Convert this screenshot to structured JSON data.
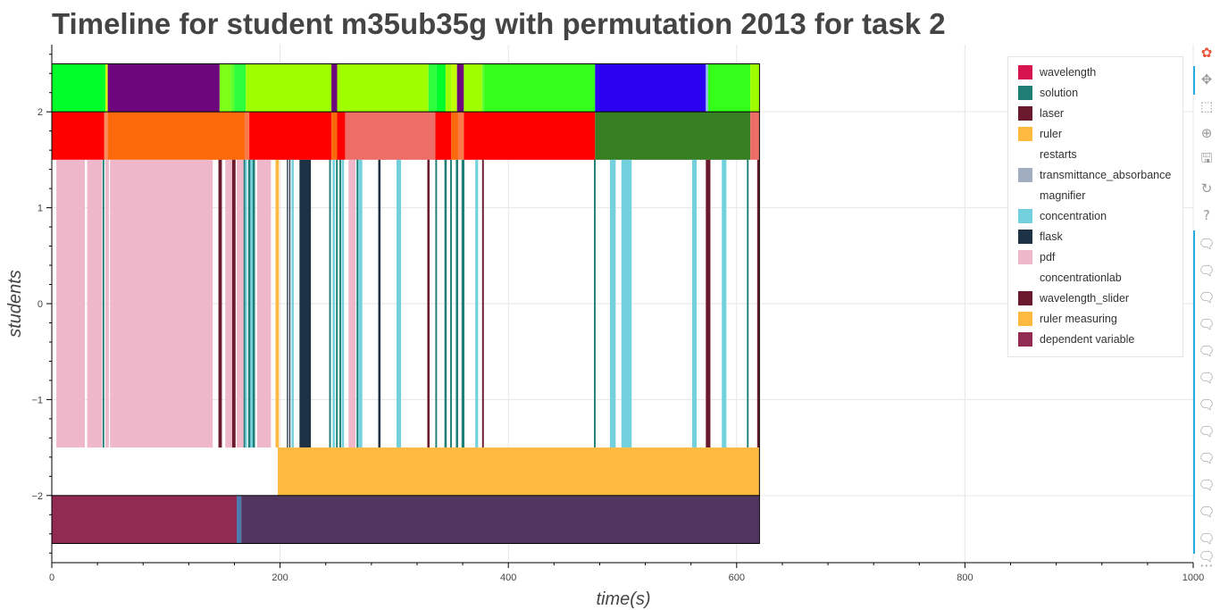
{
  "chart_data": {
    "type": "timeline",
    "title": "Timeline for student m35ub35g with permutation 2013 for task 2",
    "xlabel": "time(s)",
    "ylabel": "students",
    "xlim": [
      0,
      1000
    ],
    "ylim": [
      -2.7,
      2.7
    ],
    "xticks": [
      0,
      200,
      400,
      600,
      800,
      1000
    ],
    "xtick_labels": [
      "0",
      "200",
      "400",
      "600",
      "800",
      "1000"
    ],
    "yticks": [
      -2,
      -1,
      0,
      1,
      2
    ],
    "ytick_labels": [
      "−2",
      "−1",
      "0",
      "1",
      "2"
    ],
    "grid": true,
    "legend_placement": "top-right",
    "legend": [
      {
        "label": "wavelength",
        "color": "#d6124f"
      },
      {
        "label": "solution",
        "color": "#1f7f77"
      },
      {
        "label": "laser",
        "color": "#6b1a2e"
      },
      {
        "label": "ruler",
        "color": "#fdb940"
      },
      {
        "label": "restarts",
        "color": "#ffffff"
      },
      {
        "label": "transmittance_absorbance",
        "color": "#9fadbf"
      },
      {
        "label": "magnifier",
        "color": "#ffffff"
      },
      {
        "label": "concentration",
        "color": "#72d1dc"
      },
      {
        "label": "flask",
        "color": "#1d3245"
      },
      {
        "label": "pdf",
        "color": "#efb8ca"
      },
      {
        "label": "concentrationlab",
        "color": "#ffffff"
      },
      {
        "label": "wavelength_slider",
        "color": "#6b1a2e"
      },
      {
        "label": "ruler measuring",
        "color": "#fdb940"
      },
      {
        "label": "dependent variable",
        "color": "#922b52"
      }
    ],
    "rows": [
      {
        "y0": 2.0,
        "y1": 2.5,
        "segments": [
          {
            "start": 0,
            "end": 47,
            "color": "#00ff2a"
          },
          {
            "start": 47,
            "end": 49,
            "color": "#ccff00"
          },
          {
            "start": 49,
            "end": 147,
            "color": "#6d067d"
          },
          {
            "start": 147,
            "end": 157,
            "color": "#7dff1a"
          },
          {
            "start": 157,
            "end": 160,
            "color": "#5cff30"
          },
          {
            "start": 160,
            "end": 170,
            "color": "#2dff3d"
          },
          {
            "start": 170,
            "end": 245,
            "color": "#9fff00"
          },
          {
            "start": 245,
            "end": 250,
            "color": "#6d067d"
          },
          {
            "start": 250,
            "end": 330,
            "color": "#9fff00"
          },
          {
            "start": 330,
            "end": 337,
            "color": "#2dff3d"
          },
          {
            "start": 337,
            "end": 345,
            "color": "#00ff2a"
          },
          {
            "start": 345,
            "end": 350,
            "color": "#9fff00"
          },
          {
            "start": 350,
            "end": 355,
            "color": "#bfff00"
          },
          {
            "start": 355,
            "end": 361,
            "color": "#6d067d"
          },
          {
            "start": 361,
            "end": 377,
            "color": "#9fff00"
          },
          {
            "start": 377,
            "end": 379,
            "color": "#5cff30"
          },
          {
            "start": 379,
            "end": 476,
            "color": "#33ff1a"
          },
          {
            "start": 476,
            "end": 573,
            "color": "#2c00f0"
          },
          {
            "start": 573,
            "end": 575,
            "color": "#88bbee"
          },
          {
            "start": 575,
            "end": 612,
            "color": "#33ff1a"
          },
          {
            "start": 612,
            "end": 620,
            "color": "#9fff00"
          }
        ]
      },
      {
        "y0": 1.5,
        "y1": 2.0,
        "segments": [
          {
            "start": 0,
            "end": 46,
            "color": "#ff0000"
          },
          {
            "start": 46,
            "end": 49,
            "color": "#ff8a5c"
          },
          {
            "start": 49,
            "end": 169,
            "color": "#fd6a0c"
          },
          {
            "start": 169,
            "end": 173,
            "color": "#ff7a4a"
          },
          {
            "start": 173,
            "end": 245,
            "color": "#ff0000"
          },
          {
            "start": 245,
            "end": 250,
            "color": "#fd6a0c"
          },
          {
            "start": 250,
            "end": 257,
            "color": "#ff0000"
          },
          {
            "start": 257,
            "end": 336,
            "color": "#ec6e66"
          },
          {
            "start": 336,
            "end": 350,
            "color": "#ff0000"
          },
          {
            "start": 350,
            "end": 356,
            "color": "#fd6a0c"
          },
          {
            "start": 356,
            "end": 361,
            "color": "#ff7a4a"
          },
          {
            "start": 361,
            "end": 476,
            "color": "#ff0000"
          },
          {
            "start": 476,
            "end": 612,
            "color": "#367f22"
          },
          {
            "start": 612,
            "end": 620,
            "color": "#ec6e66"
          }
        ]
      },
      {
        "y0": -1.5,
        "y1": 1.5,
        "segments": [
          {
            "start": 4,
            "end": 29,
            "color": "#efb8ca"
          },
          {
            "start": 31,
            "end": 44,
            "color": "#efb8ca"
          },
          {
            "start": 44.5,
            "end": 46,
            "color": "#1f7f77"
          },
          {
            "start": 47,
            "end": 50,
            "color": "#efb8ca"
          },
          {
            "start": 51,
            "end": 141,
            "color": "#efb8ca"
          },
          {
            "start": 146,
            "end": 149,
            "color": "#6b1a2e"
          },
          {
            "start": 152,
            "end": 158,
            "color": "#efb8ca"
          },
          {
            "start": 158,
            "end": 161,
            "color": "#6b1a2e"
          },
          {
            "start": 162,
            "end": 168,
            "color": "#efb8ca"
          },
          {
            "start": 168,
            "end": 169.5,
            "color": "#1f7f77"
          },
          {
            "start": 169.5,
            "end": 171,
            "color": "#72d1dc"
          },
          {
            "start": 172,
            "end": 174,
            "color": "#1f7f77"
          },
          {
            "start": 174,
            "end": 176,
            "color": "#72d1dc"
          },
          {
            "start": 176,
            "end": 178,
            "color": "#1f7f77"
          },
          {
            "start": 180,
            "end": 192,
            "color": "#efb8ca"
          },
          {
            "start": 196,
            "end": 199,
            "color": "#fdb940"
          },
          {
            "start": 206,
            "end": 207,
            "color": "#1d3245"
          },
          {
            "start": 208,
            "end": 209,
            "color": "#1d3245"
          },
          {
            "start": 210,
            "end": 212,
            "color": "#72d1dc"
          },
          {
            "start": 217,
            "end": 227,
            "color": "#1d3245"
          },
          {
            "start": 243,
            "end": 244.5,
            "color": "#1f7f77"
          },
          {
            "start": 246,
            "end": 248,
            "color": "#72d1dc"
          },
          {
            "start": 249,
            "end": 250.5,
            "color": "#1f7f77"
          },
          {
            "start": 252,
            "end": 253.5,
            "color": "#1f7f77"
          },
          {
            "start": 254,
            "end": 256,
            "color": "#72d1dc"
          },
          {
            "start": 260,
            "end": 266,
            "color": "#efb8ca"
          },
          {
            "start": 267,
            "end": 268.5,
            "color": "#1f7f77"
          },
          {
            "start": 268.5,
            "end": 272,
            "color": "#72d1dc"
          },
          {
            "start": 286,
            "end": 288,
            "color": "#1d3245"
          },
          {
            "start": 302,
            "end": 306,
            "color": "#72d1dc"
          },
          {
            "start": 329,
            "end": 331,
            "color": "#6b1a2e"
          },
          {
            "start": 336,
            "end": 337.5,
            "color": "#1f7f77"
          },
          {
            "start": 344,
            "end": 346,
            "color": "#1f7f77"
          },
          {
            "start": 349,
            "end": 350.5,
            "color": "#1f7f77"
          },
          {
            "start": 354,
            "end": 356,
            "color": "#1f7f77"
          },
          {
            "start": 359,
            "end": 361.5,
            "color": "#1f7f77"
          },
          {
            "start": 371,
            "end": 373.5,
            "color": "#72d1dc"
          },
          {
            "start": 377,
            "end": 378.5,
            "color": "#6b1a2e"
          },
          {
            "start": 475,
            "end": 476.5,
            "color": "#1f7f77"
          },
          {
            "start": 489,
            "end": 494,
            "color": "#72d1dc"
          },
          {
            "start": 499,
            "end": 508,
            "color": "#72d1dc"
          },
          {
            "start": 561,
            "end": 565,
            "color": "#72d1dc"
          },
          {
            "start": 573,
            "end": 577,
            "color": "#6b1a2e"
          },
          {
            "start": 587,
            "end": 591,
            "color": "#72d1dc"
          },
          {
            "start": 609,
            "end": 610.5,
            "color": "#1f7f77"
          },
          {
            "start": 618,
            "end": 620,
            "color": "#6b1a2e"
          }
        ]
      },
      {
        "y0": -2.0,
        "y1": -1.5,
        "segments": [
          {
            "start": 198,
            "end": 620,
            "color": "#fdb940"
          }
        ]
      },
      {
        "y0": -2.5,
        "y1": -2.0,
        "segments": [
          {
            "start": 0,
            "end": 162,
            "color": "#922b52"
          },
          {
            "start": 162,
            "end": 166,
            "color": "#4d7bb0"
          },
          {
            "start": 166,
            "end": 620,
            "color": "#513760"
          }
        ]
      }
    ],
    "data_extent": [
      0,
      620
    ]
  },
  "toolbar": {
    "tools": [
      {
        "name": "bokeh-logo-icon",
        "glyph": "✿"
      },
      {
        "name": "pan-icon",
        "glyph": "✥"
      },
      {
        "name": "box-zoom-icon",
        "glyph": "⬚"
      },
      {
        "name": "wheel-zoom-icon",
        "glyph": "⊕"
      },
      {
        "name": "save-icon",
        "glyph": "🖫"
      },
      {
        "name": "reset-icon",
        "glyph": "↻"
      },
      {
        "name": "help-icon",
        "glyph": "?"
      },
      {
        "name": "hover-icon",
        "glyph": "🗨"
      },
      {
        "name": "hover-icon",
        "glyph": "🗨"
      },
      {
        "name": "hover-icon",
        "glyph": "🗨"
      },
      {
        "name": "hover-icon",
        "glyph": "🗨"
      },
      {
        "name": "hover-icon",
        "glyph": "🗨"
      },
      {
        "name": "hover-icon",
        "glyph": "🗨"
      },
      {
        "name": "hover-icon",
        "glyph": "🗨"
      },
      {
        "name": "hover-icon",
        "glyph": "🗨"
      },
      {
        "name": "hover-icon",
        "glyph": "🗨"
      },
      {
        "name": "hover-icon",
        "glyph": "🗨"
      },
      {
        "name": "hover-icon",
        "glyph": "🗨"
      },
      {
        "name": "hover-icon",
        "glyph": "🗨"
      },
      {
        "name": "hover-icon",
        "glyph": "🗨"
      },
      {
        "name": "more-icon",
        "glyph": "⋯"
      }
    ]
  }
}
